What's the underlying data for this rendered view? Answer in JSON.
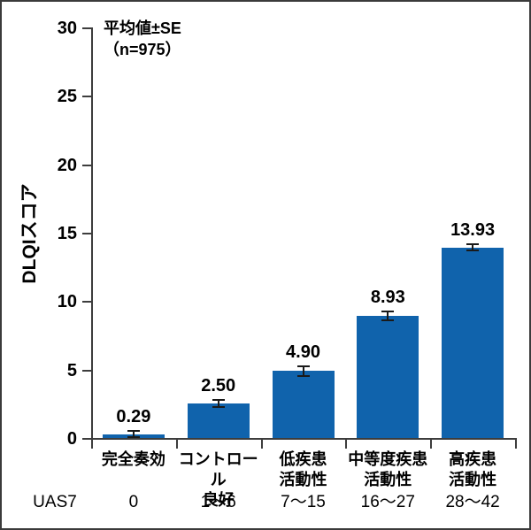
{
  "annotation": {
    "line1": "平均値±SE",
    "line2": "（n=975）"
  },
  "y_axis": {
    "label": "DLQIスコア"
  },
  "x_axis": {
    "row_label": "UAS7"
  },
  "chart_data": {
    "type": "bar",
    "title": "平均値±SE（n=975）",
    "xlabel": "UAS7",
    "ylabel": "DLQIスコア",
    "ylim": [
      0,
      30
    ],
    "yticks": [
      0,
      5,
      10,
      15,
      20,
      25,
      30
    ],
    "grid": "off",
    "legend": "none",
    "categories": [
      "完全奏効",
      "コントロール\n良好",
      "低疾患\n活動性",
      "中等度疾患\n活動性",
      "高疾患\n活動性"
    ],
    "uas7_ranges": [
      "0",
      "1〜6",
      "7〜15",
      "16〜27",
      "28〜42"
    ],
    "values": [
      0.29,
      2.5,
      4.9,
      8.93,
      13.93
    ],
    "value_labels": [
      "0.29",
      "2.50",
      "4.90",
      "8.93",
      "13.93"
    ],
    "se": [
      0.2,
      0.25,
      0.35,
      0.3,
      0.25
    ],
    "n": 975,
    "bar_color": "#1063ac",
    "axis_color": "#3d3d3d",
    "error_bar_color": "#1a1a1a",
    "text_color": "#000000"
  }
}
